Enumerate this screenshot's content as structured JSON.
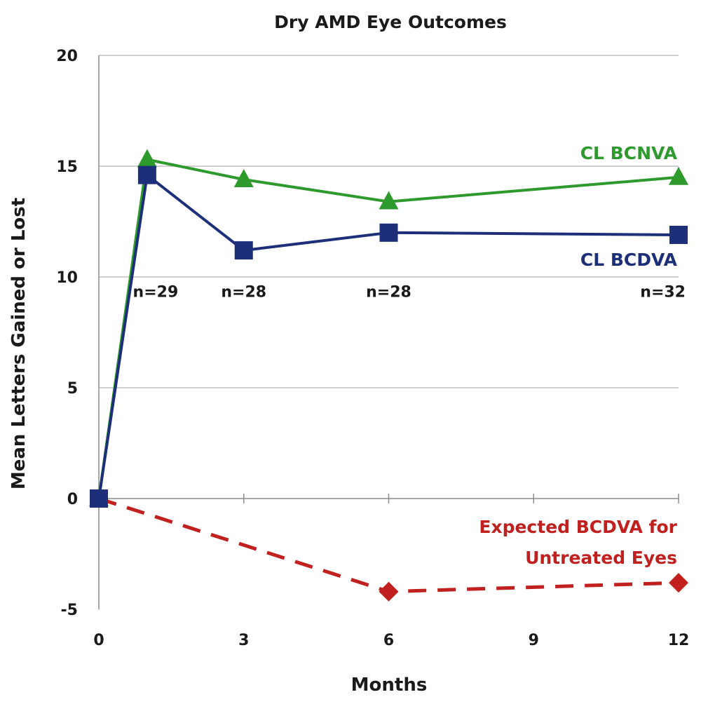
{
  "chart_data": {
    "type": "line",
    "title": "Dry AMD Eye Outcomes",
    "xlabel": "Months",
    "ylabel": "Mean Letters Gained or Lost",
    "xlim": [
      0,
      12
    ],
    "ylim": [
      -5,
      20
    ],
    "xticks": [
      0,
      3,
      6,
      9,
      12
    ],
    "yticks": [
      -5,
      0,
      5,
      10,
      15,
      20
    ],
    "grid": {
      "y": true,
      "x": false
    },
    "series": [
      {
        "name": "CL BCNVA",
        "color": "#2e9a2e",
        "marker": "triangle",
        "dash": false,
        "x": [
          0,
          1,
          3,
          6,
          12
        ],
        "y": [
          0,
          15.3,
          14.4,
          13.4,
          14.5
        ]
      },
      {
        "name": "CL BCDVA",
        "color": "#1c2f78",
        "marker": "square",
        "dash": false,
        "x": [
          0,
          1,
          3,
          6,
          12
        ],
        "y": [
          0,
          14.6,
          11.2,
          12.0,
          11.9
        ]
      },
      {
        "name": "Expected BCDVA for Untreated Eyes",
        "label_lines": [
          "Expected BCDVA for",
          "Untreated Eyes"
        ],
        "color": "#c0201e",
        "marker": "diamond",
        "dash": true,
        "x": [
          0,
          6,
          12
        ],
        "y": [
          0,
          -4.2,
          -3.8
        ]
      }
    ],
    "annotations": [
      {
        "text": "n=29",
        "x": 1,
        "y": 9.1
      },
      {
        "text": "n=28",
        "x": 3,
        "y": 9.1
      },
      {
        "text": "n=28",
        "x": 6,
        "y": 9.1
      },
      {
        "text": "n=32",
        "x": 12,
        "y": 9.1
      }
    ]
  }
}
